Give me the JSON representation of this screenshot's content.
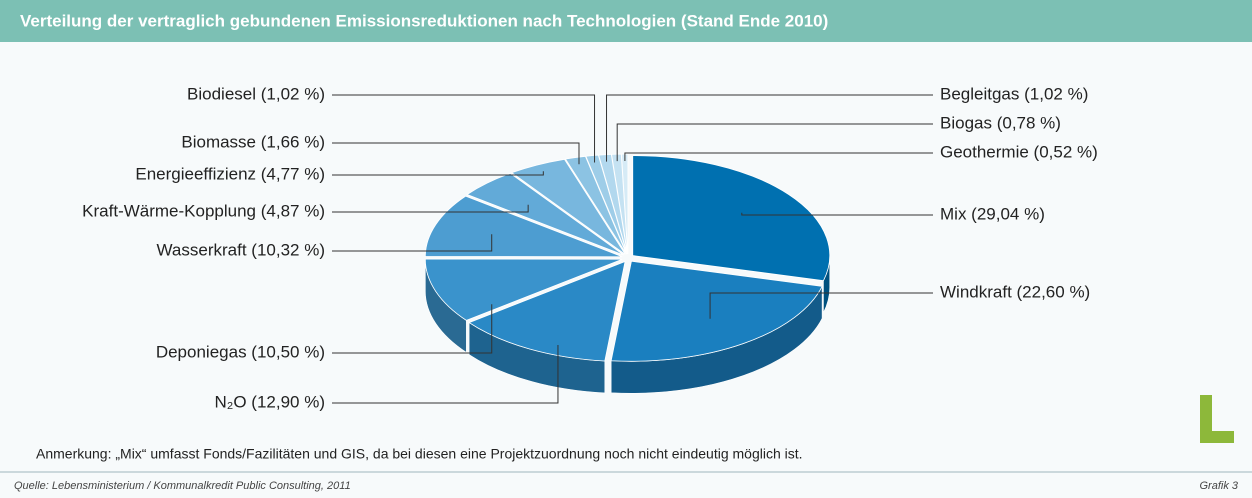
{
  "chart_data": {
    "type": "pie3d",
    "title": "Verteilung der vertraglich gebundenen Emissionsreduktionen nach Technologien (Stand Ende 2010)",
    "values": [
      29.04,
      22.6,
      12.9,
      10.5,
      10.32,
      4.87,
      4.77,
      1.66,
      1.02,
      1.02,
      0.78,
      0.52
    ],
    "value_labels": [
      "Mix (29,04 %)",
      "Windkraft (22,60 %)",
      "N₂O (12,90 %)",
      "Deponiegas (10,50 %)",
      "Wasserkraft (10,32 %)",
      "Kraft-Wärme-Kopplung (4,87 %)",
      "Energieeffizienz (4,77 %)",
      "Biomasse (1,66 %)",
      "Biodiesel (1,02 %)",
      "Begleitgas (1,02 %)",
      "Biogas (0,78 %)",
      "Geothermie (0,52 %)"
    ],
    "colors": [
      "#0070b0",
      "#1a7fbf",
      "#2a89c6",
      "#3a93cc",
      "#4d9dd1",
      "#62aad8",
      "#78b7de",
      "#8cc3e3",
      "#9ecde8",
      "#b2d8ee",
      "#c5e2f2",
      "#d6ebf6"
    ],
    "note": "Anmerkung: „Mix“ umfasst Fonds/Fazilitäten und GIS, da bei diesen eine Projektzuordnung noch nicht eindeutig möglich ist.",
    "source": "Quelle: Lebensministerium / Kommunalkredit Public Consulting, 2011",
    "figure_label": "Grafik 3"
  }
}
